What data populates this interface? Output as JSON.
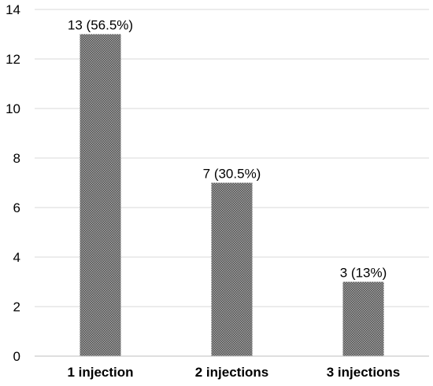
{
  "chart_data": {
    "type": "bar",
    "categories": [
      "1 injection",
      "2 injections",
      "3 injections"
    ],
    "values": [
      13,
      7,
      3
    ],
    "data_labels": [
      "13 (56.5%)",
      "7 (30.5%)",
      "3 (13%)"
    ],
    "ylim": [
      0,
      14
    ],
    "yticks": [
      0,
      2,
      4,
      6,
      8,
      10,
      12,
      14
    ],
    "grid": true,
    "legend": "none",
    "title": "",
    "xlabel": "",
    "ylabel": "",
    "colors": {
      "bar": "#8c8c8c",
      "bar_pattern": "#5a5a5a",
      "grid": "#d9d9d9",
      "axis": "#bfbfbf"
    }
  }
}
